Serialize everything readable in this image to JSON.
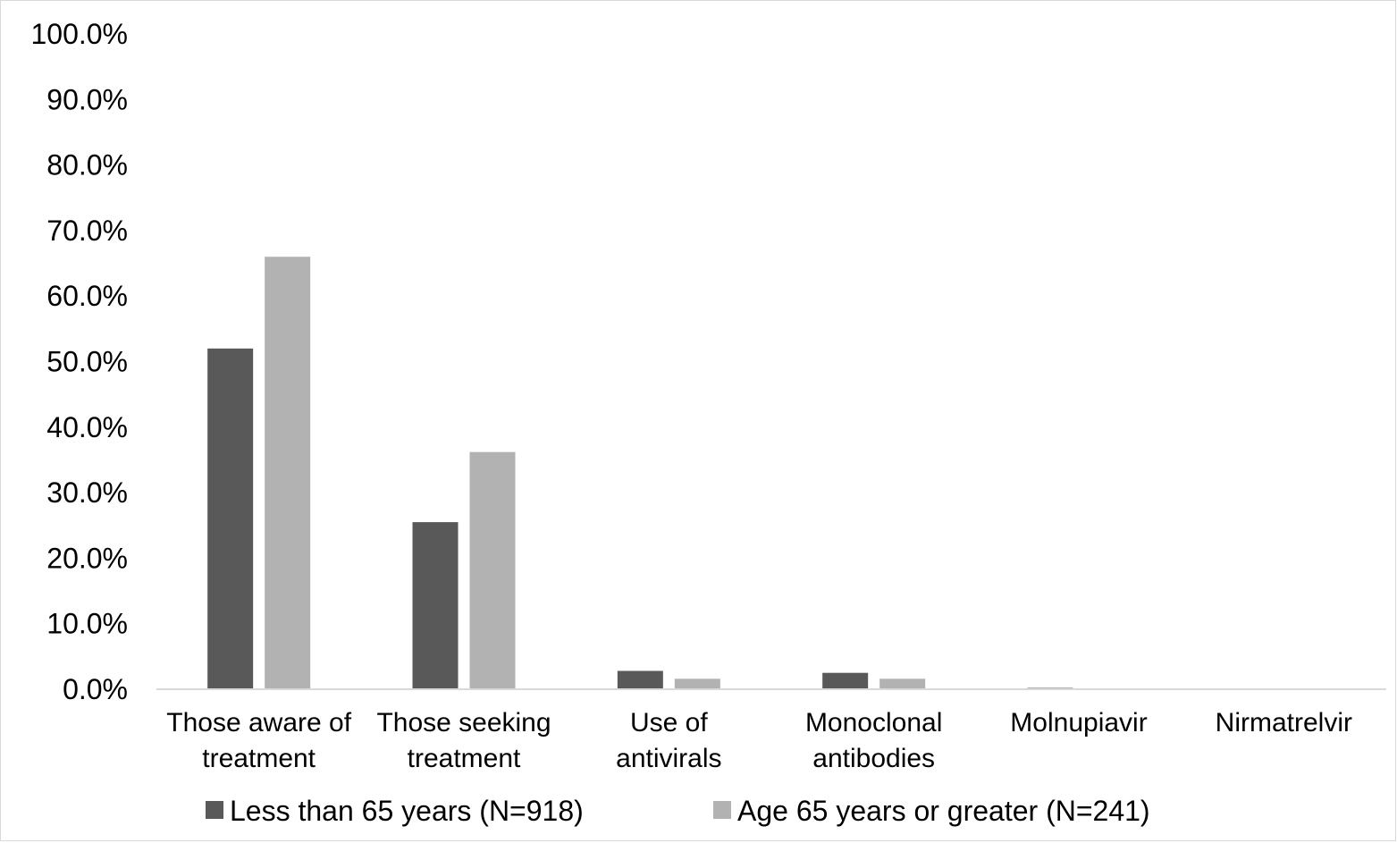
{
  "chart_data": {
    "type": "bar",
    "title": "",
    "xlabel": "",
    "ylabel": "",
    "categories": [
      [
        "Those aware of",
        "treatment"
      ],
      [
        "Those seeking",
        "treatment"
      ],
      [
        "Use of",
        "antivirals"
      ],
      [
        "Monoclonal",
        "antibodies"
      ],
      [
        "Molnupiavir"
      ],
      [
        "Nirmatrelvir"
      ]
    ],
    "series": [
      {
        "name": "Less than 65 years (N=918)",
        "color": "#595959",
        "values": [
          52.0,
          25.5,
          2.8,
          2.5,
          0.2,
          0.0
        ]
      },
      {
        "name": "Age 65 years or greater (N=241)",
        "color": "#b2b2b2",
        "values": [
          66.0,
          36.2,
          1.6,
          1.6,
          0.0,
          0.0
        ]
      }
    ],
    "ylim": [
      0,
      100
    ],
    "yticks": [
      "0.0%",
      "10.0%",
      "20.0%",
      "30.0%",
      "40.0%",
      "50.0%",
      "60.0%",
      "70.0%",
      "80.0%",
      "90.0%",
      "100.0%"
    ],
    "grid": false,
    "legend": "bottom"
  }
}
